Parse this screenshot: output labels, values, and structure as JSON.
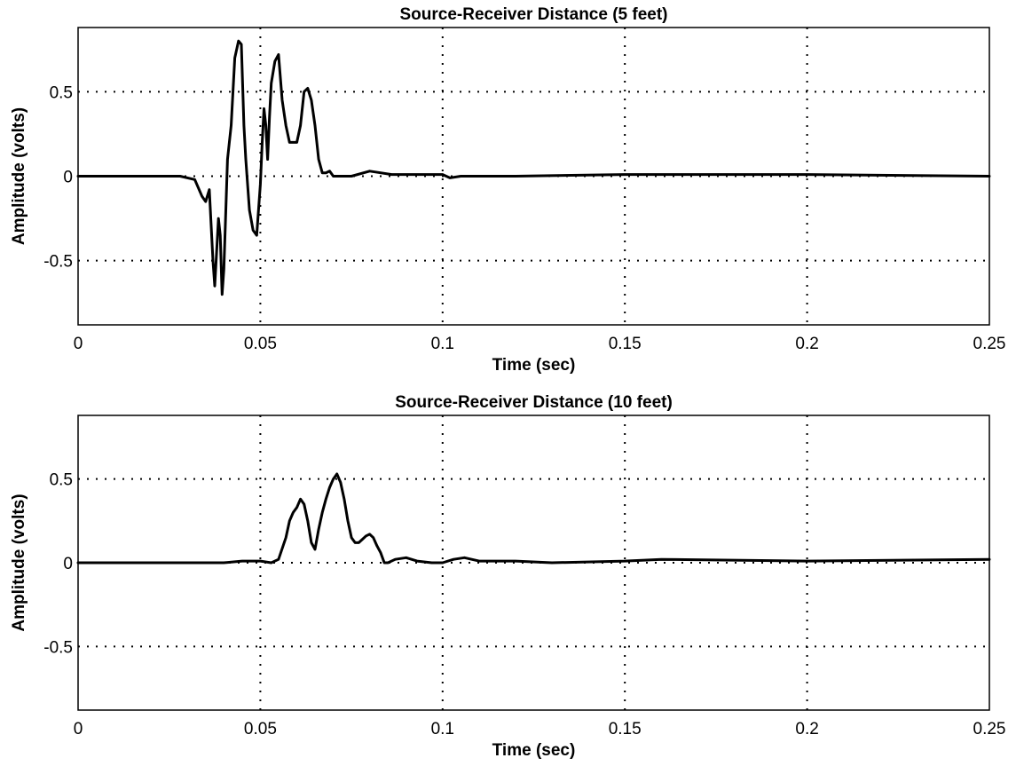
{
  "chart_data": [
    {
      "type": "line",
      "title": "Source-Receiver Distance (5 feet)",
      "xlabel": "Time (sec)",
      "ylabel": "Amplitude (volts)",
      "xlim": [
        0,
        0.25
      ],
      "ylim": [
        -0.88,
        0.88
      ],
      "xticks": [
        "0",
        "0.05",
        "0.1",
        "0.15",
        "0.2",
        "0.25"
      ],
      "yticks": [
        "0.5",
        "0",
        "-0.5"
      ],
      "xtick_values": [
        0,
        0.05,
        0.1,
        0.15,
        0.2,
        0.25
      ],
      "ytick_values": [
        0.5,
        0,
        -0.5
      ],
      "grid": true,
      "series": [
        {
          "x": [
            0,
            0.01,
            0.02,
            0.028,
            0.032,
            0.034,
            0.035,
            0.036,
            0.037,
            0.0375,
            0.038,
            0.0385,
            0.039,
            0.0395,
            0.04,
            0.041,
            0.042,
            0.043,
            0.044,
            0.0448,
            0.0455,
            0.046,
            0.047,
            0.048,
            0.049,
            0.05,
            0.0505,
            0.051,
            0.0515,
            0.052,
            0.0525,
            0.053,
            0.054,
            0.055,
            0.056,
            0.057,
            0.058,
            0.059,
            0.06,
            0.061,
            0.062,
            0.063,
            0.064,
            0.065,
            0.066,
            0.067,
            0.068,
            0.069,
            0.07,
            0.072,
            0.075,
            0.08,
            0.083,
            0.086,
            0.09,
            0.1,
            0.102,
            0.105,
            0.12,
            0.15,
            0.2,
            0.25
          ],
          "y": [
            0,
            0,
            0,
            0,
            -0.02,
            -0.12,
            -0.15,
            -0.08,
            -0.5,
            -0.65,
            -0.45,
            -0.25,
            -0.35,
            -0.7,
            -0.55,
            0.1,
            0.3,
            0.7,
            0.8,
            0.78,
            0.3,
            0.1,
            -0.2,
            -0.32,
            -0.35,
            -0.05,
            0.2,
            0.4,
            0.3,
            0.1,
            0.35,
            0.55,
            0.68,
            0.72,
            0.45,
            0.3,
            0.2,
            0.2,
            0.2,
            0.3,
            0.5,
            0.52,
            0.45,
            0.3,
            0.1,
            0.02,
            0.02,
            0.03,
            0.0,
            0.0,
            0.0,
            0.03,
            0.02,
            0.01,
            0.01,
            0.01,
            -0.01,
            0.0,
            0.0,
            0.01,
            0.01,
            0.0
          ]
        }
      ]
    },
    {
      "type": "line",
      "title": "Source-Receiver Distance (10 feet)",
      "xlabel": "Time (sec)",
      "ylabel": "Amplitude (volts)",
      "xlim": [
        0,
        0.25
      ],
      "ylim": [
        -0.88,
        0.88
      ],
      "xticks": [
        "0",
        "0.05",
        "0.1",
        "0.15",
        "0.2",
        "0.25"
      ],
      "yticks": [
        "0.5",
        "0",
        "-0.5"
      ],
      "xtick_values": [
        0,
        0.05,
        0.1,
        0.15,
        0.2,
        0.25
      ],
      "ytick_values": [
        0.5,
        0,
        -0.5
      ],
      "grid": true,
      "series": [
        {
          "x": [
            0,
            0.02,
            0.04,
            0.045,
            0.05,
            0.053,
            0.055,
            0.057,
            0.058,
            0.059,
            0.06,
            0.061,
            0.062,
            0.063,
            0.064,
            0.065,
            0.066,
            0.067,
            0.068,
            0.069,
            0.07,
            0.071,
            0.072,
            0.073,
            0.074,
            0.075,
            0.076,
            0.077,
            0.078,
            0.079,
            0.08,
            0.081,
            0.082,
            0.083,
            0.084,
            0.085,
            0.087,
            0.09,
            0.093,
            0.097,
            0.1,
            0.103,
            0.106,
            0.11,
            0.12,
            0.13,
            0.15,
            0.16,
            0.2,
            0.25
          ],
          "y": [
            0,
            0,
            0,
            0.01,
            0.01,
            0.0,
            0.02,
            0.15,
            0.25,
            0.3,
            0.33,
            0.38,
            0.35,
            0.25,
            0.12,
            0.08,
            0.2,
            0.3,
            0.38,
            0.45,
            0.5,
            0.53,
            0.48,
            0.38,
            0.25,
            0.15,
            0.12,
            0.12,
            0.14,
            0.16,
            0.17,
            0.15,
            0.1,
            0.06,
            0.0,
            0.0,
            0.02,
            0.03,
            0.01,
            0.0,
            0.0,
            0.02,
            0.03,
            0.01,
            0.01,
            0.0,
            0.01,
            0.02,
            0.01,
            0.02
          ]
        }
      ]
    }
  ]
}
